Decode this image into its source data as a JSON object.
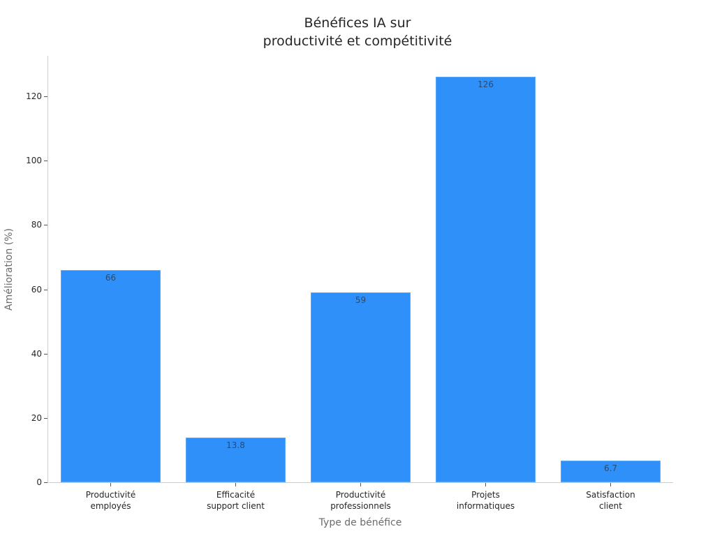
{
  "chart_data": {
    "type": "bar",
    "title": "Bénéfices IA sur productivité et compétitivité",
    "title_lines": [
      "Bénéfices IA sur",
      "productivité et compétitivité"
    ],
    "xlabel": "Type de bénéfice",
    "ylabel": "Amélioration (%)",
    "categories": [
      "Productivité employés",
      "Efficacité support client",
      "Productivité professionnels",
      "Projets informatiques",
      "Satisfaction client"
    ],
    "category_lines": [
      [
        "Productivité",
        "employés"
      ],
      [
        "Efficacité",
        "support client"
      ],
      [
        "Productivité",
        "professionnels"
      ],
      [
        "Projets",
        "informatiques"
      ],
      [
        "Satisfaction",
        "client"
      ]
    ],
    "values": [
      66,
      13.8,
      59,
      126,
      6.7
    ],
    "value_labels": [
      "66",
      "13.8",
      "59",
      "126",
      "6.7"
    ],
    "yticks": [
      0,
      20,
      40,
      60,
      80,
      100,
      120
    ],
    "ytick_labels": [
      "0",
      "20",
      "40",
      "60",
      "80",
      "100",
      "120"
    ],
    "ylim": [
      0,
      132.7
    ],
    "grid": false,
    "legend": null,
    "bar_color": "#2e90f8"
  }
}
